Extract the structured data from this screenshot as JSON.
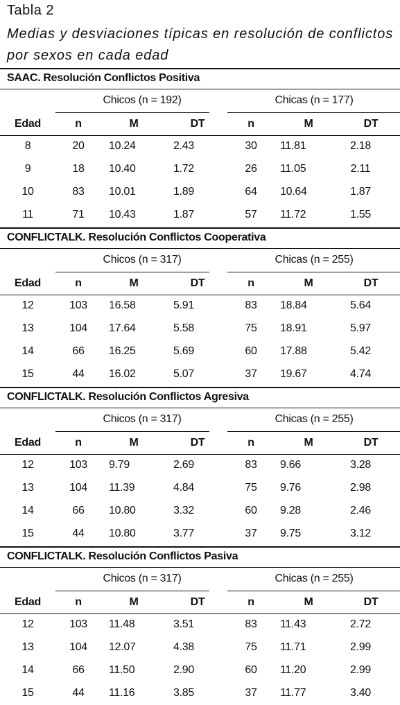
{
  "header": {
    "title": "Tabla 2",
    "subtitle": "Medias y desviaciones típicas en resolución de conflictos por sexos en cada edad"
  },
  "sections": [
    {
      "title": "SAAC. Resolución Conflictos Positiva",
      "groups": [
        "Chicos (n = 192)",
        "Chicas (n = 177)"
      ],
      "columns": [
        "Edad",
        "n",
        "M",
        "DT",
        "n",
        "M",
        "DT"
      ],
      "rows": [
        [
          "8",
          "20",
          "10.24",
          "2.43",
          "30",
          "11.81",
          "2.18"
        ],
        [
          "9",
          "18",
          "10.40",
          "1.72",
          "26",
          "11.05",
          "2.11"
        ],
        [
          "10",
          "83",
          "10.01",
          "1.89",
          "64",
          "10.64",
          "1.87"
        ],
        [
          "11",
          "71",
          "10.43",
          "1.87",
          "57",
          "11.72",
          "1.55"
        ]
      ]
    },
    {
      "title": "CONFLICTALK. Resolución Conflictos Cooperativa",
      "groups": [
        "Chicos (n = 317)",
        "Chicas (n = 255)"
      ],
      "columns": [
        "Edad",
        "n",
        "M",
        "DT",
        "n",
        "M",
        "DT"
      ],
      "rows": [
        [
          "12",
          "103",
          "16.58",
          "5.91",
          "83",
          "18.84",
          "5.64"
        ],
        [
          "13",
          "104",
          "17.64",
          "5.58",
          "75",
          "18.91",
          "5.97"
        ],
        [
          "14",
          "66",
          "16.25",
          "5.69",
          "60",
          "17.88",
          "5.42"
        ],
        [
          "15",
          "44",
          "16.02",
          "5.07",
          "37",
          "19.67",
          "4.74"
        ]
      ]
    },
    {
      "title": "CONFLICTALK. Resolución Conflictos Agresiva",
      "groups": [
        "Chicos (n = 317)",
        "Chicas (n = 255)"
      ],
      "columns": [
        "Edad",
        "n",
        "M",
        "DT",
        "n",
        "M",
        "DT"
      ],
      "rows": [
        [
          "12",
          "103",
          "9.79",
          "2.69",
          "83",
          "9.66",
          "3.28"
        ],
        [
          "13",
          "104",
          "11.39",
          "4.84",
          "75",
          "9.76",
          "2.98"
        ],
        [
          "14",
          "66",
          "10.80",
          "3.32",
          "60",
          "9.28",
          "2.46"
        ],
        [
          "15",
          "44",
          "10.80",
          "3.77",
          "37",
          "9.75",
          "3.12"
        ]
      ]
    },
    {
      "title": "CONFLICTALK. Resolución Conflictos Pasiva",
      "groups": [
        "Chicos (n = 317)",
        "Chicas (n = 255)"
      ],
      "columns": [
        "Edad",
        "n",
        "M",
        "DT",
        "n",
        "M",
        "DT"
      ],
      "rows": [
        [
          "12",
          "103",
          "11.48",
          "3.51",
          "83",
          "11.43",
          "2.72"
        ],
        [
          "13",
          "104",
          "12.07",
          "4.38",
          "75",
          "11.71",
          "2.99"
        ],
        [
          "14",
          "66",
          "11.50",
          "2.90",
          "60",
          "11.20",
          "2.99"
        ],
        [
          "15",
          "44",
          "11.16",
          "3.85",
          "37",
          "11.77",
          "3.40"
        ]
      ]
    }
  ]
}
